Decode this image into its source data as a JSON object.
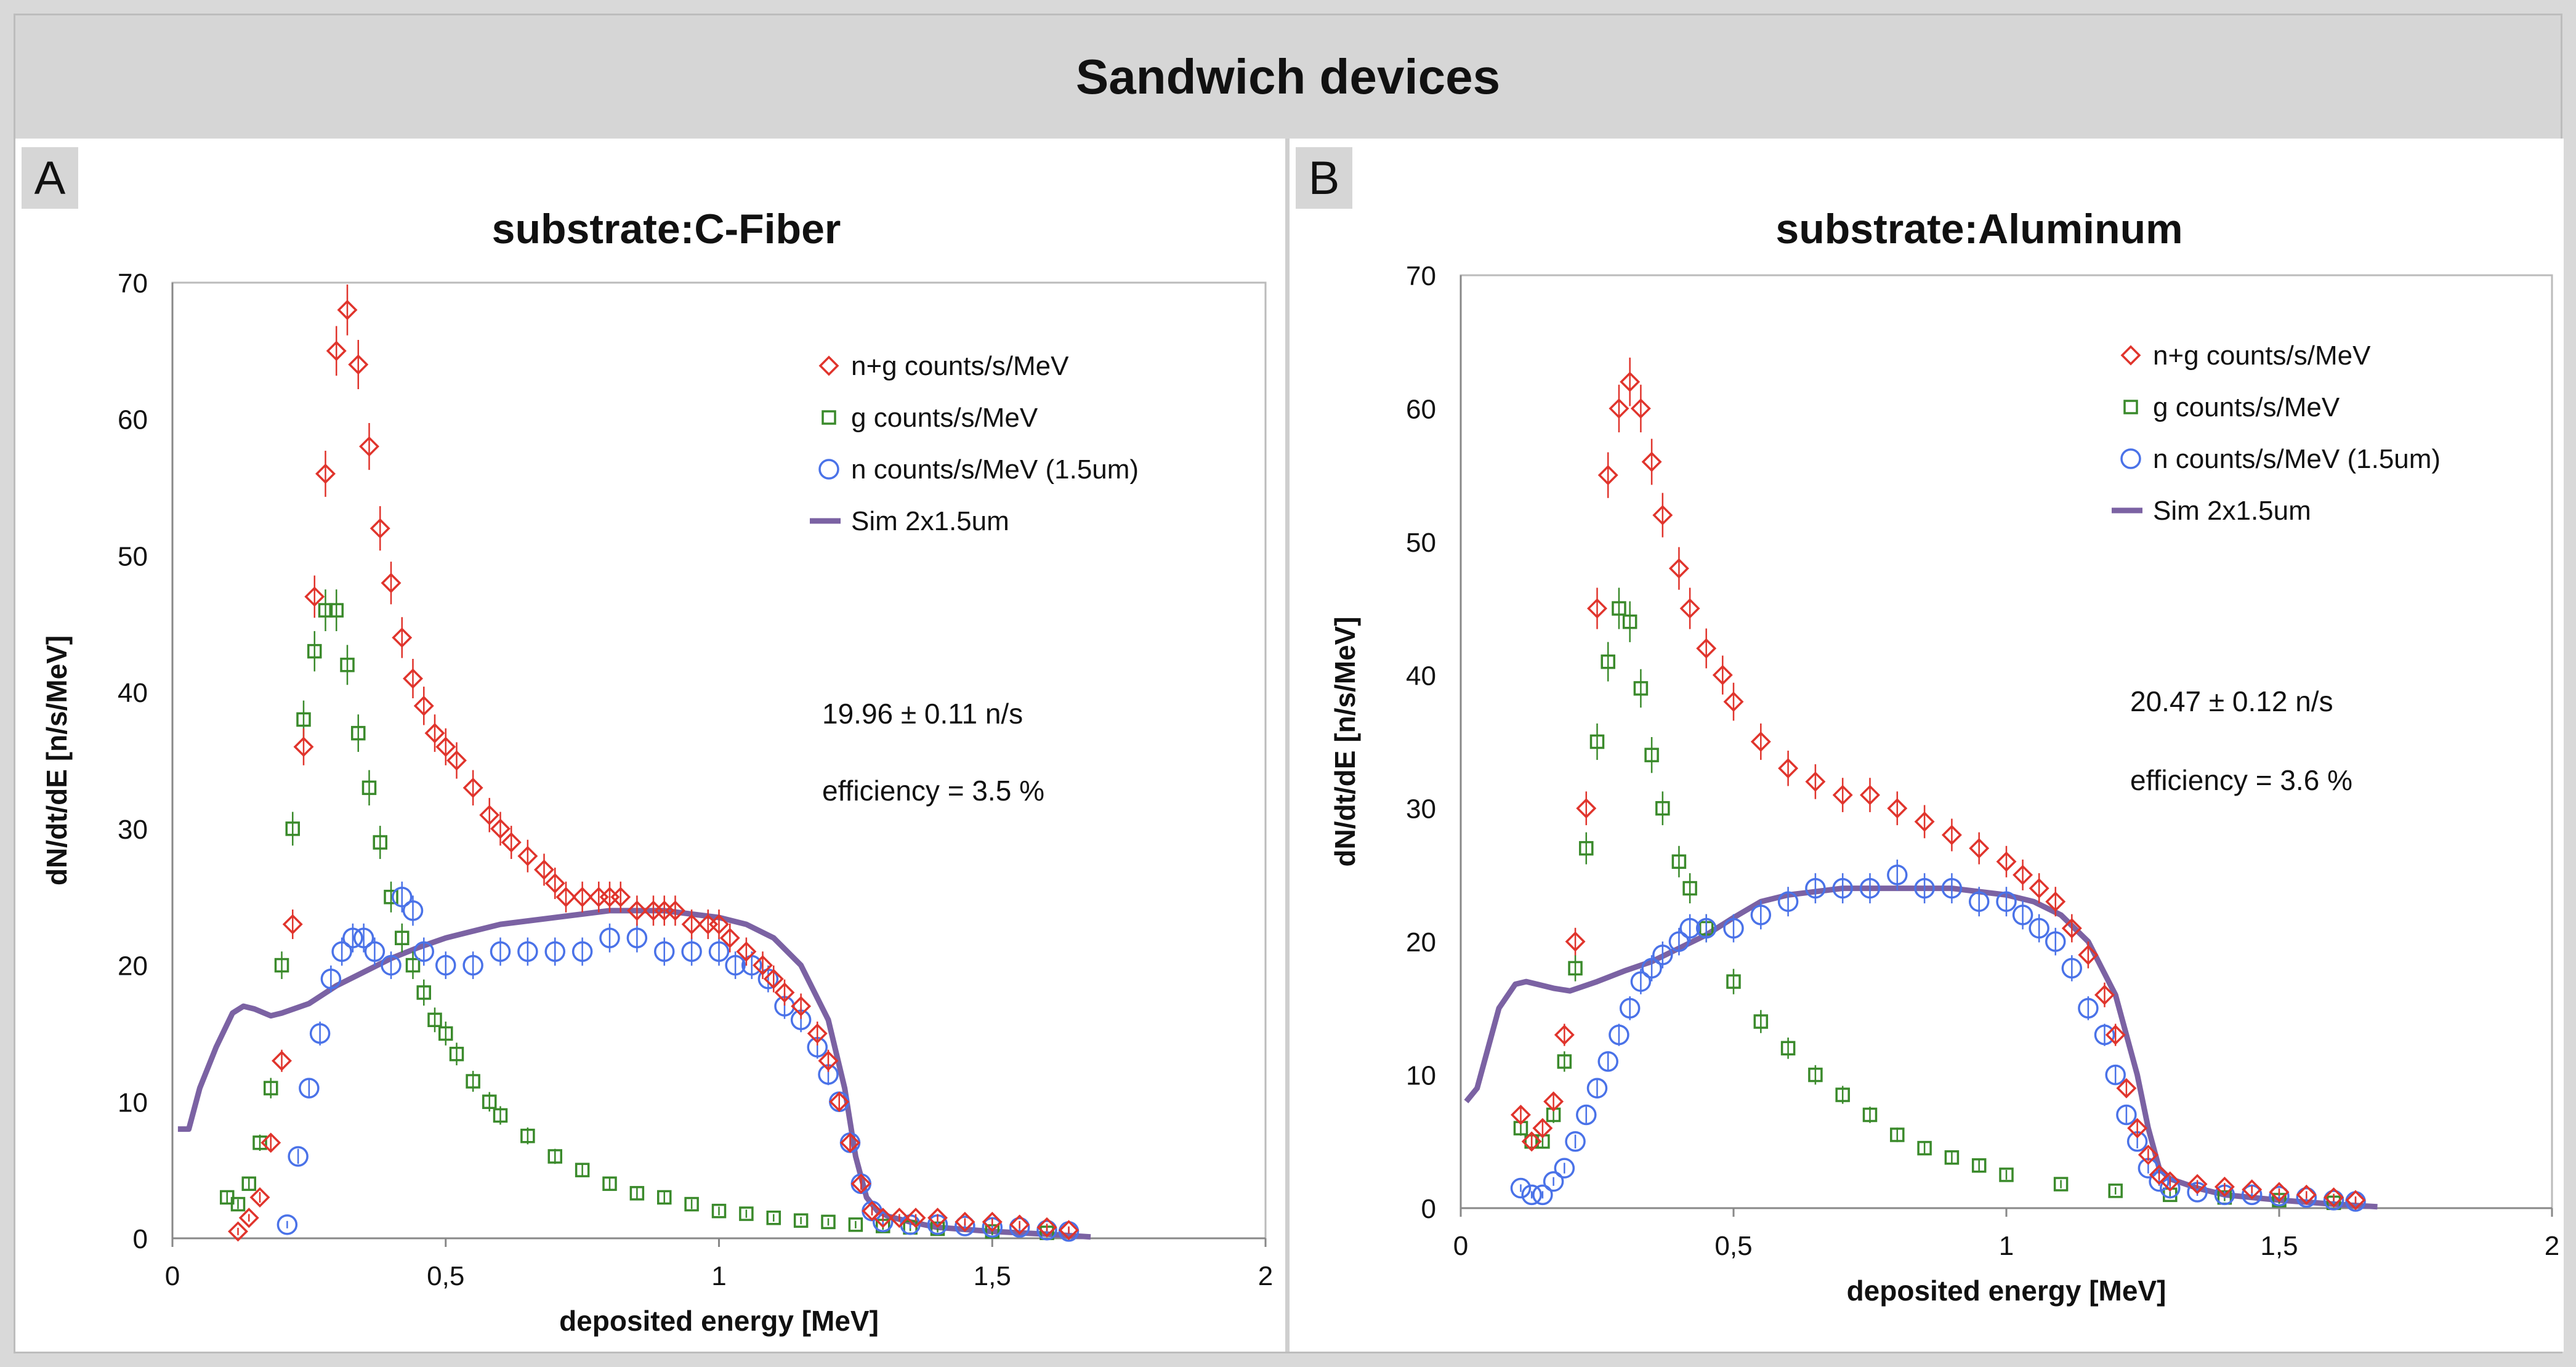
{
  "figure": {
    "title": "Sandwich devices"
  },
  "colors": {
    "ng": "#e0342c",
    "g": "#3a8a2b",
    "n": "#4a72e8",
    "sim": "#7b62a3"
  },
  "chart_data": [
    {
      "panel_letter": "A",
      "type": "scatter",
      "title": "substrate:C-Fiber",
      "xlabel": "deposited energy [MeV]",
      "ylabel": "dN/dt/dE [n/s/MeV]",
      "xlim": [
        0,
        2
      ],
      "ylim": [
        0,
        70
      ],
      "xticks": [
        0,
        0.5,
        1,
        1.5,
        2
      ],
      "xtick_labels": [
        "0",
        "0,5",
        "1",
        "1,5",
        "2"
      ],
      "yticks": [
        0,
        10,
        20,
        30,
        40,
        50,
        60,
        70
      ],
      "legend_position": "top-right",
      "annotations": [
        "19.96 ± 0.11 n/s",
        "efficiency = 3.5 %"
      ],
      "series": [
        {
          "name": "n+g counts/s/MeV",
          "marker": "diamond",
          "color": "#e0342c",
          "x": [
            0.12,
            0.14,
            0.16,
            0.18,
            0.2,
            0.22,
            0.24,
            0.26,
            0.28,
            0.3,
            0.32,
            0.34,
            0.36,
            0.38,
            0.4,
            0.42,
            0.44,
            0.46,
            0.48,
            0.5,
            0.52,
            0.55,
            0.58,
            0.6,
            0.62,
            0.65,
            0.68,
            0.7,
            0.72,
            0.75,
            0.78,
            0.8,
            0.82,
            0.85,
            0.88,
            0.9,
            0.92,
            0.95,
            0.98,
            1.0,
            1.02,
            1.05,
            1.08,
            1.1,
            1.12,
            1.15,
            1.18,
            1.2,
            1.22,
            1.24,
            1.26,
            1.28,
            1.3,
            1.33,
            1.36,
            1.4,
            1.45,
            1.5,
            1.55,
            1.6,
            1.64
          ],
          "y": [
            0.5,
            1.5,
            3,
            7,
            13,
            23,
            36,
            47,
            56,
            65,
            68,
            64,
            58,
            52,
            48,
            44,
            41,
            39,
            37,
            36,
            35,
            33,
            31,
            30,
            29,
            28,
            27,
            26,
            25,
            25,
            25,
            25,
            25,
            24,
            24,
            24,
            24,
            23,
            23,
            23,
            22,
            21,
            20,
            19,
            18,
            17,
            15,
            13,
            10,
            7,
            4,
            2,
            1.5,
            1.5,
            1.5,
            1.5,
            1.2,
            1.2,
            1,
            0.8,
            0.6
          ]
        },
        {
          "name": "g counts/s/MeV",
          "marker": "square",
          "color": "#3a8a2b",
          "x": [
            0.1,
            0.12,
            0.14,
            0.16,
            0.18,
            0.2,
            0.22,
            0.24,
            0.26,
            0.28,
            0.3,
            0.32,
            0.34,
            0.36,
            0.38,
            0.4,
            0.42,
            0.44,
            0.46,
            0.48,
            0.5,
            0.52,
            0.55,
            0.58,
            0.6,
            0.65,
            0.7,
            0.75,
            0.8,
            0.85,
            0.9,
            0.95,
            1.0,
            1.05,
            1.1,
            1.15,
            1.2,
            1.25,
            1.3,
            1.35,
            1.4,
            1.5,
            1.6
          ],
          "y": [
            3,
            2.5,
            4,
            7,
            11,
            20,
            30,
            38,
            43,
            46,
            46,
            42,
            37,
            33,
            29,
            25,
            22,
            20,
            18,
            16,
            15,
            13.5,
            11.5,
            10,
            9,
            7.5,
            6,
            5,
            4,
            3.3,
            3,
            2.5,
            2,
            1.8,
            1.5,
            1.3,
            1.2,
            1,
            0.9,
            0.8,
            0.7,
            0.5,
            0.4
          ]
        },
        {
          "name": "n counts/s/MeV (1.5um)",
          "marker": "circle",
          "color": "#4a72e8",
          "x": [
            0.21,
            0.23,
            0.25,
            0.27,
            0.29,
            0.31,
            0.33,
            0.35,
            0.37,
            0.4,
            0.42,
            0.44,
            0.46,
            0.5,
            0.55,
            0.6,
            0.65,
            0.7,
            0.75,
            0.8,
            0.85,
            0.9,
            0.95,
            1.0,
            1.03,
            1.06,
            1.09,
            1.12,
            1.15,
            1.18,
            1.2,
            1.22,
            1.24,
            1.26,
            1.28,
            1.3,
            1.35,
            1.4,
            1.45,
            1.5,
            1.55,
            1.6,
            1.64
          ],
          "y": [
            1,
            6,
            11,
            15,
            19,
            21,
            22,
            22,
            21,
            20,
            25,
            24,
            21,
            20,
            20,
            21,
            21,
            21,
            21,
            22,
            22,
            21,
            21,
            21,
            20,
            20,
            19,
            17,
            16,
            14,
            12,
            10,
            7,
            4,
            2,
            1.2,
            1,
            1,
            0.9,
            0.8,
            0.8,
            0.6,
            0.5
          ]
        },
        {
          "name": "Sim 2x1.5um",
          "line": true,
          "color": "#7b62a3",
          "x": [
            0.01,
            0.03,
            0.05,
            0.08,
            0.11,
            0.13,
            0.15,
            0.18,
            0.2,
            0.25,
            0.3,
            0.35,
            0.4,
            0.45,
            0.5,
            0.55,
            0.6,
            0.7,
            0.8,
            0.9,
            1.0,
            1.05,
            1.1,
            1.15,
            1.2,
            1.23,
            1.25,
            1.27,
            1.29,
            1.31,
            1.35,
            1.4,
            1.5,
            1.6,
            1.68
          ],
          "y": [
            8,
            8,
            11,
            14,
            16.5,
            17,
            16.8,
            16.3,
            16.5,
            17.2,
            18.5,
            19.5,
            20.5,
            21.3,
            22,
            22.5,
            23,
            23.5,
            24,
            24,
            23.5,
            23,
            22,
            20,
            16,
            11,
            6,
            3,
            2,
            1.6,
            1.2,
            0.8,
            0.5,
            0.3,
            0.1
          ]
        }
      ]
    },
    {
      "panel_letter": "B",
      "type": "scatter",
      "title": "substrate:Aluminum",
      "xlabel": "deposited energy [MeV]",
      "ylabel": "dN/dt/dE [n/s/MeV]",
      "xlim": [
        0,
        2
      ],
      "ylim": [
        0,
        70
      ],
      "xticks": [
        0,
        0.5,
        1,
        1.5,
        2
      ],
      "xtick_labels": [
        "0",
        "0,5",
        "1",
        "1,5",
        "2"
      ],
      "yticks": [
        0,
        10,
        20,
        30,
        40,
        50,
        60,
        70
      ],
      "legend_position": "top-right",
      "annotations": [
        "20.47 ± 0.12 n/s",
        "efficiency = 3.6 %"
      ],
      "series": [
        {
          "name": "n+g counts/s/MeV",
          "marker": "diamond",
          "color": "#e0342c",
          "x": [
            0.11,
            0.13,
            0.15,
            0.17,
            0.19,
            0.21,
            0.23,
            0.25,
            0.27,
            0.29,
            0.31,
            0.33,
            0.35,
            0.37,
            0.4,
            0.42,
            0.45,
            0.48,
            0.5,
            0.55,
            0.6,
            0.65,
            0.7,
            0.75,
            0.8,
            0.85,
            0.9,
            0.95,
            1.0,
            1.03,
            1.06,
            1.09,
            1.12,
            1.15,
            1.18,
            1.2,
            1.22,
            1.24,
            1.26,
            1.28,
            1.3,
            1.35,
            1.4,
            1.45,
            1.5,
            1.55,
            1.6,
            1.64
          ],
          "y": [
            7,
            5,
            6,
            8,
            13,
            20,
            30,
            45,
            55,
            60,
            62,
            60,
            56,
            52,
            48,
            45,
            42,
            40,
            38,
            35,
            33,
            32,
            31,
            31,
            30,
            29,
            28,
            27,
            26,
            25,
            24,
            23,
            21,
            19,
            16,
            13,
            9,
            6,
            4,
            2.5,
            2,
            1.8,
            1.6,
            1.4,
            1.2,
            1,
            0.8,
            0.6
          ]
        },
        {
          "name": "g counts/s/MeV",
          "marker": "square",
          "color": "#3a8a2b",
          "x": [
            0.11,
            0.13,
            0.15,
            0.17,
            0.19,
            0.21,
            0.23,
            0.25,
            0.27,
            0.29,
            0.31,
            0.33,
            0.35,
            0.37,
            0.4,
            0.42,
            0.45,
            0.5,
            0.55,
            0.6,
            0.65,
            0.7,
            0.75,
            0.8,
            0.85,
            0.9,
            0.95,
            1.0,
            1.1,
            1.2,
            1.3,
            1.4,
            1.5,
            1.6
          ],
          "y": [
            6,
            5,
            5,
            7,
            11,
            18,
            27,
            35,
            41,
            45,
            44,
            39,
            34,
            30,
            26,
            24,
            21,
            17,
            14,
            12,
            10,
            8.5,
            7,
            5.5,
            4.5,
            3.8,
            3.2,
            2.5,
            1.8,
            1.3,
            1,
            0.8,
            0.6,
            0.4
          ]
        },
        {
          "name": "n counts/s/MeV (1.5um)",
          "marker": "circle",
          "color": "#4a72e8",
          "x": [
            0.11,
            0.13,
            0.15,
            0.17,
            0.19,
            0.21,
            0.23,
            0.25,
            0.27,
            0.29,
            0.31,
            0.33,
            0.35,
            0.37,
            0.4,
            0.42,
            0.45,
            0.5,
            0.55,
            0.6,
            0.65,
            0.7,
            0.75,
            0.8,
            0.85,
            0.9,
            0.95,
            1.0,
            1.03,
            1.06,
            1.09,
            1.12,
            1.15,
            1.18,
            1.2,
            1.22,
            1.24,
            1.26,
            1.28,
            1.3,
            1.35,
            1.4,
            1.45,
            1.5,
            1.55,
            1.6,
            1.64
          ],
          "y": [
            1.5,
            1,
            1,
            2,
            3,
            5,
            7,
            9,
            11,
            13,
            15,
            17,
            18,
            19,
            20,
            21,
            21,
            21,
            22,
            23,
            24,
            24,
            24,
            25,
            24,
            24,
            23,
            23,
            22,
            21,
            20,
            18,
            15,
            13,
            10,
            7,
            5,
            3,
            2,
            1.5,
            1.2,
            1,
            1,
            0.9,
            0.8,
            0.6,
            0.5
          ]
        },
        {
          "name": "Sim 2x1.5um",
          "line": true,
          "color": "#7b62a3",
          "x": [
            0.01,
            0.03,
            0.05,
            0.07,
            0.1,
            0.12,
            0.14,
            0.17,
            0.2,
            0.25,
            0.3,
            0.35,
            0.4,
            0.45,
            0.5,
            0.55,
            0.6,
            0.7,
            0.8,
            0.9,
            1.0,
            1.05,
            1.1,
            1.15,
            1.2,
            1.22,
            1.24,
            1.26,
            1.28,
            1.3,
            1.35,
            1.4,
            1.5,
            1.6,
            1.68
          ],
          "y": [
            8,
            9,
            12,
            15,
            16.8,
            17,
            16.8,
            16.5,
            16.3,
            17,
            17.8,
            18.5,
            19.5,
            20.5,
            21.8,
            23,
            23.5,
            24,
            24,
            24,
            23.5,
            23,
            22,
            20,
            16,
            13,
            10,
            6,
            3,
            2.2,
            1.5,
            1,
            0.6,
            0.3,
            0.1
          ]
        }
      ]
    }
  ]
}
